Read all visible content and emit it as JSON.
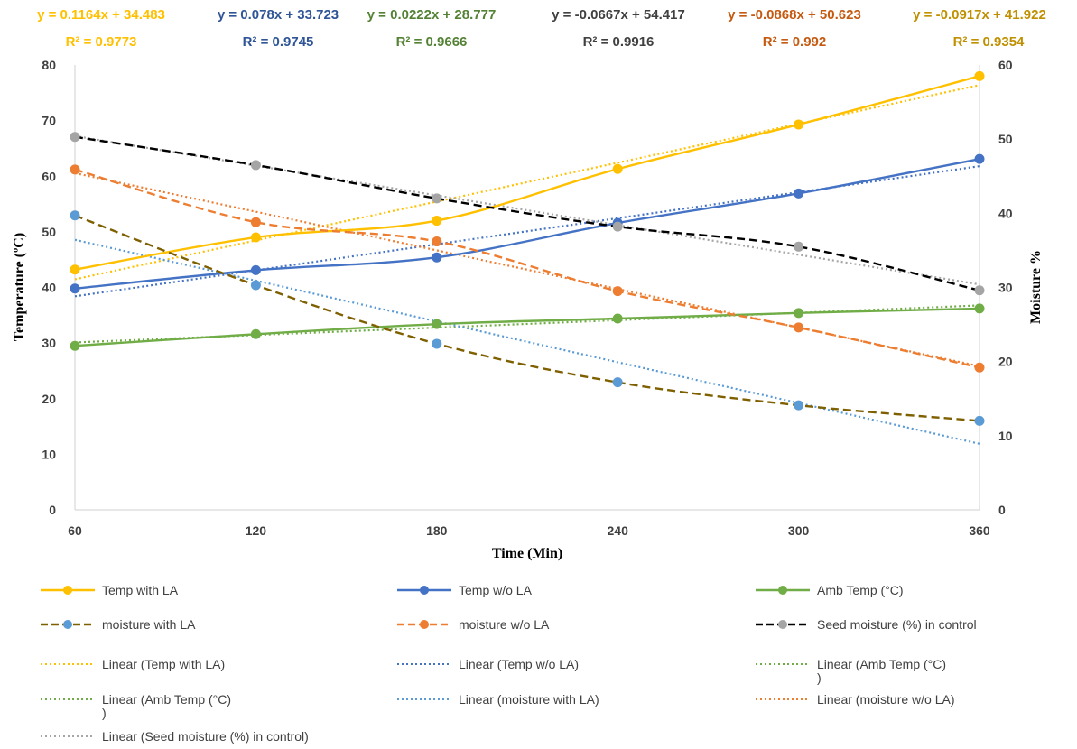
{
  "chart_data": {
    "type": "line",
    "title": "",
    "xlabel": "Time (Min)",
    "ylabel_left": "Temperature  (ºC)",
    "ylabel_right": "Moisture %",
    "x": [
      60,
      120,
      180,
      240,
      300,
      360
    ],
    "x_ticks": [
      "60",
      "120",
      "180",
      "240",
      "300",
      "360"
    ],
    "xlim": [
      60,
      360
    ],
    "ylim_left": [
      0,
      80
    ],
    "ylim_right": [
      0,
      60
    ],
    "left_ticks": [
      "0",
      "10",
      "20",
      "30",
      "40",
      "50",
      "60",
      "70",
      "80"
    ],
    "right_ticks": [
      "0",
      "10",
      "20",
      "30",
      "40",
      "50",
      "60"
    ],
    "grid": false,
    "legend_position": "bottom",
    "series": [
      {
        "name": "Temp with LA",
        "axis": "left",
        "style": "solid",
        "color": "#FFC000",
        "values": [
          43.2,
          49,
          52,
          61.3,
          69.3,
          78
        ]
      },
      {
        "name": "Temp w/o LA",
        "axis": "left",
        "style": "solid",
        "color": "#4472C4",
        "values": [
          39.8,
          43.1,
          45.4,
          51.6,
          56.9,
          63.1
        ]
      },
      {
        "name": "Amb Temp (°C)",
        "axis": "left",
        "style": "solid",
        "color": "#70AD47",
        "values": [
          29.5,
          31.6,
          33.4,
          34.4,
          35.4,
          36.2
        ]
      },
      {
        "name": "moisture with LA",
        "axis": "right",
        "style": "dashed",
        "color": "#7F6000",
        "marker_color": "#5B9BD5",
        "values": [
          39.7,
          30.3,
          22.4,
          17.2,
          14.1,
          12
        ]
      },
      {
        "name": "moisture w/o LA",
        "axis": "right",
        "style": "dashed",
        "color": "#ED7D31",
        "values": [
          45.9,
          38.8,
          36.2,
          29.5,
          24.6,
          19.2
        ]
      },
      {
        "name": "Seed moisture (%) in control",
        "axis": "right",
        "style": "dashed",
        "color": "#000000",
        "marker_color": "#A5A5A5",
        "values": [
          50.3,
          46.5,
          42,
          38.2,
          35.5,
          29.6
        ]
      }
    ],
    "trendlines": [
      {
        "name": "Linear (Temp with LA)",
        "axis": "left",
        "color": "#FFC000",
        "slope": 0.1164,
        "intercept": 34.483,
        "equation": "y = 0.1164x + 34.483",
        "r2": "R² = 0.9773"
      },
      {
        "name": "Linear (Temp w/o LA)",
        "axis": "left",
        "color": "#4472C4",
        "slope": 0.078,
        "intercept": 33.723,
        "equation": "y = 0.078x + 33.723",
        "r2": "R² = 0.9745"
      },
      {
        "name": "Linear (Amb Temp (°C)\n)",
        "axis": "left",
        "color": "#70AD47",
        "slope": 0.0222,
        "intercept": 28.777,
        "equation": "y = 0.0222x + 28.777",
        "r2": "R² = 0.9666"
      },
      {
        "name": "Linear (Amb Temp (°C)\n)",
        "axis": "left",
        "color": "#70AD47",
        "slope": 0.0222,
        "intercept": 28.777
      },
      {
        "name": "Linear (moisture with LA)",
        "axis": "right",
        "color": "#5B9BD5",
        "slope": -0.0917,
        "intercept": 41.922
      },
      {
        "name": "Linear (moisture w/o LA)",
        "axis": "right",
        "color": "#ED7D31",
        "slope": -0.0868,
        "intercept": 50.623
      },
      {
        "name": "Linear (Seed moisture (%) in control)",
        "axis": "right",
        "color": "#A5A5A5",
        "slope": -0.0667,
        "intercept": 54.417
      }
    ],
    "equations": [
      {
        "text": "y = 0.1164x + 34.483",
        "r2": "R² = 0.9773",
        "color": "#FFC000"
      },
      {
        "text": "y = 0.078x + 33.723",
        "r2": "R² = 0.9745",
        "color": "#2F5597"
      },
      {
        "text": "y = 0.0222x + 28.777",
        "r2": "R² = 0.9666",
        "color": "#548235"
      },
      {
        "text": "y = -0.0667x + 54.417",
        "r2": "R² = 0.9916",
        "color": "#404040"
      },
      {
        "text": "y = -0.0868x + 50.623",
        "r2": "R² = 0.992",
        "color": "#C55A11"
      },
      {
        "text": "y = -0.0917x + 41.922",
        "r2": "R² = 0.9354",
        "color": "#BF9000"
      }
    ]
  }
}
